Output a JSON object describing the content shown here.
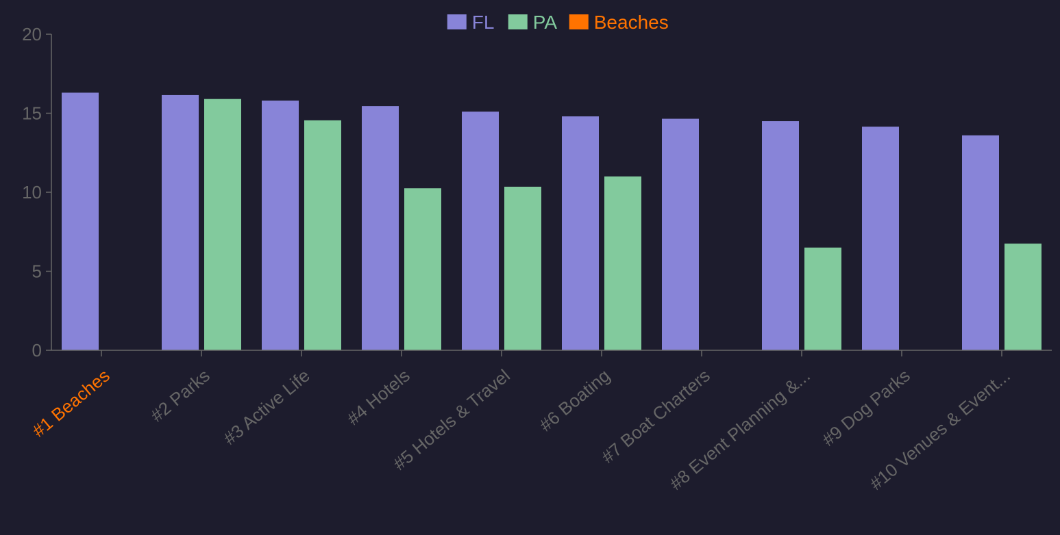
{
  "chart_data": {
    "type": "bar",
    "title": "",
    "xlabel": "",
    "ylabel": "",
    "ylim": [
      0,
      20
    ],
    "yticks": [
      0,
      5,
      10,
      15,
      20
    ],
    "categories": [
      "#1 Beaches",
      "#2 Parks",
      "#3 Active Life",
      "#4 Hotels",
      "#5 Hotels & Travel",
      "#6 Boating",
      "#7 Boat Charters",
      "#8 Event Planning &...",
      "#9 Dog Parks",
      "#10 Venues & Event..."
    ],
    "highlighted_category": "#1 Beaches",
    "series": [
      {
        "name": "FL",
        "color": "#8884d8",
        "values": [
          16.3,
          16.15,
          15.8,
          15.45,
          15.1,
          14.8,
          14.65,
          14.5,
          14.15,
          13.6
        ]
      },
      {
        "name": "PA",
        "color": "#82ca9d",
        "values": [
          0,
          15.9,
          14.55,
          10.25,
          10.35,
          11.0,
          0,
          6.5,
          0,
          6.75
        ]
      }
    ],
    "legend": [
      {
        "name": "FL",
        "color": "#8884d8"
      },
      {
        "name": "PA",
        "color": "#82ca9d"
      },
      {
        "name": "Beaches",
        "color": "#ff7300"
      }
    ],
    "legend_position": "top-center",
    "colors": {
      "axis": "#666666",
      "tick_text": "#666666",
      "highlight": "#ff7300",
      "background": "#1d1c2d"
    }
  }
}
